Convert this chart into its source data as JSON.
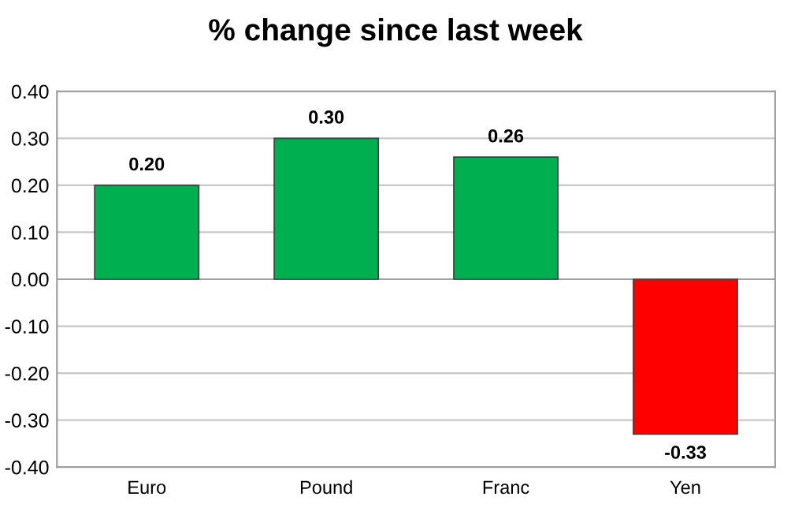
{
  "chart_data": {
    "type": "bar",
    "title": "% change since last week",
    "categories": [
      "Euro",
      "Pound",
      "Franc",
      "Yen"
    ],
    "values": [
      0.2,
      0.3,
      0.26,
      -0.33
    ],
    "colors": [
      "#00b050",
      "#00b050",
      "#00b050",
      "#ff0000"
    ],
    "value_labels": [
      "0.20",
      "0.30",
      "0.26",
      "-0.33"
    ],
    "ylim": [
      -0.4,
      0.4
    ],
    "yticks": [
      {
        "value": -0.4,
        "label": "-0.40"
      },
      {
        "value": -0.3,
        "label": "-0.30"
      },
      {
        "value": -0.2,
        "label": "-0.20"
      },
      {
        "value": -0.1,
        "label": "-0.10"
      },
      {
        "value": 0,
        "label": "0.00"
      },
      {
        "value": 0.1,
        "label": "0.10"
      },
      {
        "value": 0.2,
        "label": "0.20"
      },
      {
        "value": 0.3,
        "label": "0.30"
      },
      {
        "value": 0.4,
        "label": "0.40"
      }
    ],
    "grid": "y",
    "legend": false
  }
}
